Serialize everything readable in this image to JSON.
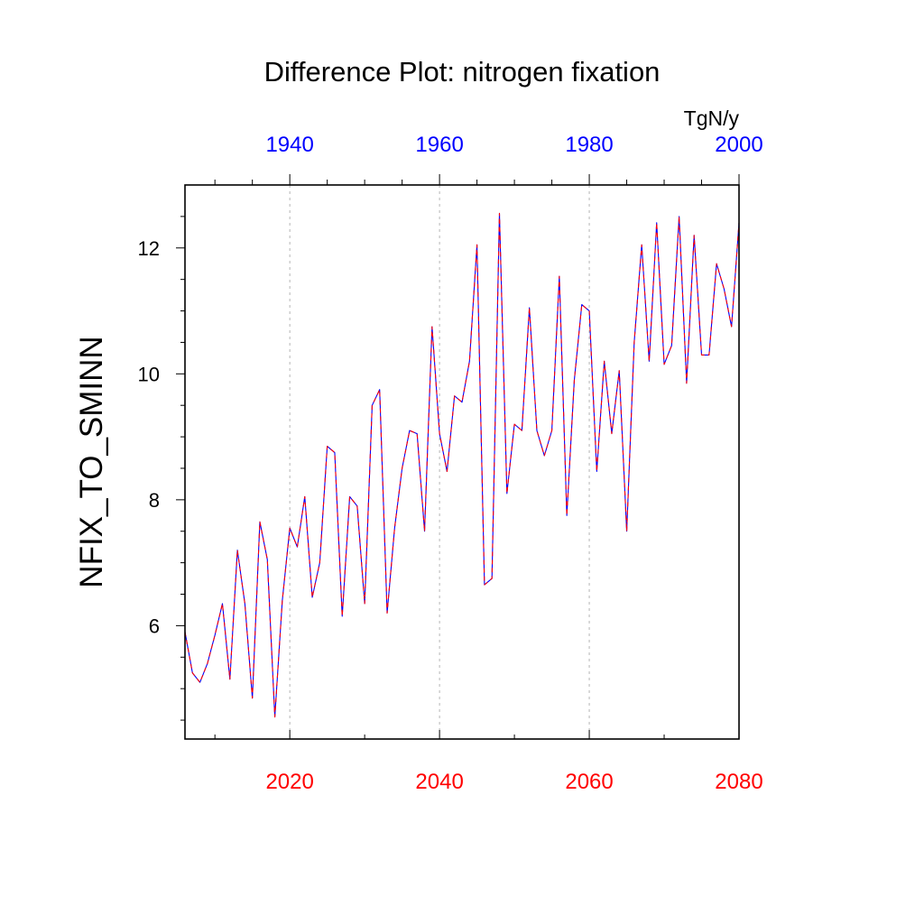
{
  "chart_data": {
    "type": "line",
    "title": "Difference Plot: nitrogen fixation",
    "units": "TgN/y",
    "ylabel": "NFIX_TO_SMINN",
    "xlabel": "",
    "xlim": [
      2006,
      2080
    ],
    "ylim": [
      4.2,
      13.0
    ],
    "yticks": [
      6,
      8,
      10,
      12
    ],
    "bottom_axis": {
      "color": "#ff0000",
      "ticks": [
        2020,
        2040,
        2060,
        2080
      ]
    },
    "top_axis": {
      "color": "#0000ff",
      "ticks": [
        1940,
        1960,
        1980,
        2000
      ],
      "offset": -80
    },
    "grid_vertical": [
      2020,
      2040,
      2060
    ],
    "series": [
      {
        "name": "blue",
        "color": "#0000ff",
        "style": "solid",
        "x": [
          2006,
          2007,
          2008,
          2009,
          2010,
          2011,
          2012,
          2013,
          2014,
          2015,
          2016,
          2017,
          2018,
          2019,
          2020,
          2021,
          2022,
          2023,
          2024,
          2025,
          2026,
          2027,
          2028,
          2029,
          2030,
          2031,
          2032,
          2033,
          2034,
          2035,
          2036,
          2037,
          2038,
          2039,
          2040,
          2041,
          2042,
          2043,
          2044,
          2045,
          2046,
          2047,
          2048,
          2049,
          2050,
          2051,
          2052,
          2053,
          2054,
          2055,
          2056,
          2057,
          2058,
          2059,
          2060,
          2061,
          2062,
          2063,
          2064,
          2065,
          2066,
          2067,
          2068,
          2069,
          2070,
          2071,
          2072,
          2073,
          2074,
          2075,
          2076,
          2077,
          2078,
          2079,
          2080
        ],
        "y": [
          5.9,
          5.25,
          5.1,
          5.4,
          5.85,
          6.35,
          5.15,
          7.2,
          6.35,
          4.85,
          7.65,
          7.05,
          4.55,
          6.4,
          7.55,
          7.25,
          8.05,
          6.45,
          7.0,
          8.85,
          8.75,
          6.15,
          8.05,
          7.9,
          6.35,
          9.5,
          9.75,
          6.2,
          7.55,
          8.5,
          9.1,
          9.05,
          7.5,
          10.75,
          9.05,
          8.45,
          9.65,
          9.55,
          10.2,
          12.05,
          6.65,
          6.75,
          12.55,
          8.1,
          9.2,
          9.1,
          11.05,
          9.1,
          8.7,
          9.1,
          11.55,
          7.75,
          9.9,
          11.1,
          11.0,
          8.45,
          10.2,
          9.05,
          10.05,
          7.5,
          10.5,
          12.05,
          10.2,
          12.4,
          10.15,
          10.45,
          12.5,
          9.85,
          12.2,
          10.3,
          10.3,
          11.75,
          11.35,
          10.75,
          12.4
        ]
      },
      {
        "name": "red",
        "color": "#ff0000",
        "style": "dashed",
        "x": [
          2006,
          2007,
          2008,
          2009,
          2010,
          2011,
          2012,
          2013,
          2014,
          2015,
          2016,
          2017,
          2018,
          2019,
          2020,
          2021,
          2022,
          2023,
          2024,
          2025,
          2026,
          2027,
          2028,
          2029,
          2030,
          2031,
          2032,
          2033,
          2034,
          2035,
          2036,
          2037,
          2038,
          2039,
          2040,
          2041,
          2042,
          2043,
          2044,
          2045,
          2046,
          2047,
          2048,
          2049,
          2050,
          2051,
          2052,
          2053,
          2054,
          2055,
          2056,
          2057,
          2058,
          2059,
          2060,
          2061,
          2062,
          2063,
          2064,
          2065,
          2066,
          2067,
          2068,
          2069,
          2070,
          2071,
          2072,
          2073,
          2074,
          2075,
          2076,
          2077,
          2078,
          2079,
          2080
        ],
        "y": [
          5.9,
          5.25,
          5.1,
          5.4,
          5.85,
          6.35,
          5.15,
          7.2,
          6.35,
          4.85,
          7.65,
          7.05,
          4.55,
          6.4,
          7.55,
          7.25,
          8.05,
          6.45,
          7.0,
          8.85,
          8.75,
          6.15,
          8.05,
          7.9,
          6.35,
          9.5,
          9.75,
          6.2,
          7.55,
          8.5,
          9.1,
          9.05,
          7.5,
          10.75,
          9.05,
          8.45,
          9.65,
          9.55,
          10.2,
          12.05,
          6.65,
          6.75,
          12.55,
          8.1,
          9.2,
          9.1,
          11.05,
          9.1,
          8.7,
          9.1,
          11.55,
          7.75,
          9.9,
          11.1,
          11.0,
          8.45,
          10.2,
          9.05,
          10.05,
          7.5,
          10.5,
          12.05,
          10.2,
          12.4,
          10.15,
          10.45,
          12.5,
          9.85,
          12.2,
          10.3,
          10.3,
          11.75,
          11.35,
          10.75,
          12.4
        ]
      }
    ]
  }
}
